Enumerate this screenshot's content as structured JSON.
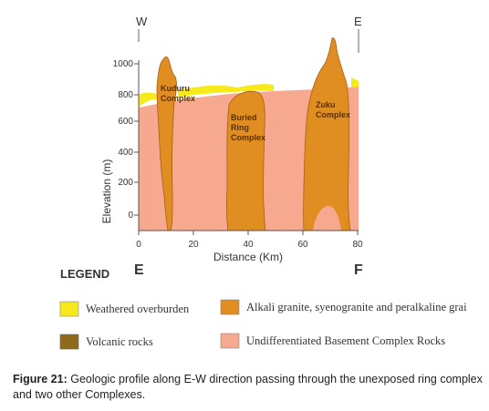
{
  "profile": {
    "west_label": "W",
    "east_label": "E",
    "y_axis_label": "Elevation (m)",
    "y_ticks": [
      "1000",
      "800",
      "600",
      "400",
      "200",
      "0"
    ],
    "x_ticks": [
      "0",
      "20",
      "40",
      "60",
      "80"
    ],
    "x_axis_label": "Distance (Km)",
    "left_end_label": "E",
    "right_end_label": "F",
    "complexes": [
      {
        "lines": [
          "Kuduru",
          "Complex"
        ]
      },
      {
        "lines": [
          "Buried",
          "Ring",
          "Complex"
        ]
      },
      {
        "lines": [
          "Zuku",
          "Complex"
        ]
      }
    ]
  },
  "legend": {
    "title": "LEGEND",
    "items": [
      {
        "label": "Weathered overburden",
        "color": "#f6ea1c"
      },
      {
        "label": "Volcanic rocks",
        "color": "#8f6a1b"
      },
      {
        "label": "Alkali granite, syenogranite and peralkaline grai",
        "color": "#e08d22"
      },
      {
        "label": "Undifferentiated Basement Complex Rocks",
        "color": "#f6a98f"
      }
    ]
  },
  "caption": {
    "label": "Figure 21:",
    "text": " Geologic profile along E-W direction passing through the unexposed ring complex and two other Complexes."
  },
  "colors": {
    "basement": "#f6a98f",
    "granite": "#e08d22",
    "overburden": "#f6ea1c",
    "axis": "#555555"
  }
}
